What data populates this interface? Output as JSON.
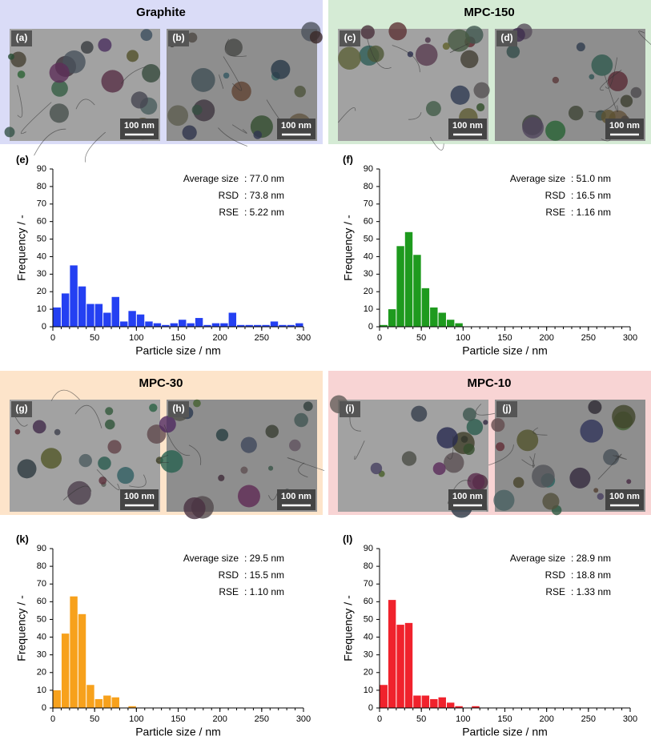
{
  "panels": [
    {
      "title": "Graphite",
      "title_color": "#2f4fe8",
      "background": "#dadcf7",
      "images": [
        {
          "label": "(a)",
          "scale_bar": "100 nm"
        },
        {
          "label": "(b)",
          "scale_bar": "100 nm"
        }
      ]
    },
    {
      "title": "MPC-150",
      "title_color": "#1a911a",
      "background": "#d5ebd5",
      "images": [
        {
          "label": "(c)",
          "scale_bar": "100 nm"
        },
        {
          "label": "(d)",
          "scale_bar": "100 nm"
        }
      ]
    },
    {
      "title": "MPC-30",
      "title_color": "#f5a01a",
      "background": "#fde4ca",
      "images": [
        {
          "label": "(g)",
          "scale_bar": "100 nm"
        },
        {
          "label": "(h)",
          "scale_bar": "100 nm"
        }
      ]
    },
    {
      "title": "MPC-10",
      "title_color": "#ee2a2a",
      "background": "#f8d4d4",
      "images": [
        {
          "label": "(i)",
          "scale_bar": "100 nm"
        },
        {
          "label": "(j)",
          "scale_bar": "100 nm"
        }
      ]
    }
  ],
  "chart_data": [
    {
      "type": "histogram",
      "panel_label": "(e)",
      "color": "#2440f2",
      "x_label": "Particle size / nm",
      "y_label": "Frequency / -",
      "bins": [
        0,
        10,
        20,
        30,
        40,
        50,
        60,
        70,
        80,
        90,
        100,
        110,
        120,
        130,
        140,
        150,
        160,
        170,
        180,
        190,
        200,
        210,
        220,
        230,
        240,
        250,
        260,
        270,
        280,
        290,
        300
      ],
      "values": [
        11,
        19,
        35,
        23,
        13,
        13,
        8,
        17,
        3,
        9,
        7,
        3,
        2,
        1,
        2,
        4,
        2,
        5,
        1,
        2,
        2,
        8,
        1,
        1,
        1,
        1,
        3,
        1,
        1,
        2
      ],
      "xlim": [
        0,
        300
      ],
      "xticks": [
        0,
        50,
        100,
        150,
        200,
        250,
        300
      ],
      "ylim": [
        0,
        90
      ],
      "yticks": [
        0,
        10,
        20,
        30,
        40,
        50,
        60,
        70,
        80,
        90
      ],
      "annotations": [
        {
          "label": "Average size",
          "value": ": 77.0 nm"
        },
        {
          "label": "RSD",
          "value": ": 73.8 nm"
        },
        {
          "label": "RSE",
          "value": ": 5.22 nm"
        }
      ]
    },
    {
      "type": "histogram",
      "panel_label": "(f)",
      "color": "#1e9a1e",
      "x_label": "Particle size / nm",
      "y_label": "Frequency / -",
      "bins": [
        0,
        10,
        20,
        30,
        40,
        50,
        60,
        70,
        80,
        90,
        100,
        110,
        120,
        130,
        140,
        150,
        160,
        170,
        180,
        190,
        200,
        210,
        220,
        230,
        240,
        250,
        260,
        270,
        280,
        290,
        300
      ],
      "values": [
        1,
        10,
        46,
        54,
        41,
        22,
        11,
        8,
        4,
        2,
        0,
        0,
        0,
        0,
        0,
        0,
        0,
        0,
        0,
        0,
        0,
        0,
        0,
        0,
        0,
        0,
        0,
        0,
        0,
        0
      ],
      "xlim": [
        0,
        300
      ],
      "xticks": [
        0,
        50,
        100,
        150,
        200,
        250,
        300
      ],
      "ylim": [
        0,
        90
      ],
      "yticks": [
        0,
        10,
        20,
        30,
        40,
        50,
        60,
        70,
        80,
        90
      ],
      "annotations": [
        {
          "label": "Average size",
          "value": ": 51.0 nm"
        },
        {
          "label": "RSD",
          "value": ": 16.5 nm"
        },
        {
          "label": "RSE",
          "value": ": 1.16 nm"
        }
      ]
    },
    {
      "type": "histogram",
      "panel_label": "(k)",
      "color": "#f7a11c",
      "x_label": "Particle size / nm",
      "y_label": "Frequency / -",
      "bins": [
        0,
        10,
        20,
        30,
        40,
        50,
        60,
        70,
        80,
        90,
        100,
        110,
        120,
        130,
        140,
        150,
        160,
        170,
        180,
        190,
        200,
        210,
        220,
        230,
        240,
        250,
        260,
        270,
        280,
        290,
        300
      ],
      "values": [
        10,
        42,
        63,
        53,
        13,
        5,
        7,
        6,
        0,
        1,
        0,
        0,
        0,
        0,
        0,
        0,
        0,
        0,
        0,
        0,
        0,
        0,
        0,
        0,
        0,
        0,
        0,
        0,
        0,
        0
      ],
      "xlim": [
        0,
        300
      ],
      "xticks": [
        0,
        50,
        100,
        150,
        200,
        250,
        300
      ],
      "ylim": [
        0,
        90
      ],
      "yticks": [
        0,
        10,
        20,
        30,
        40,
        50,
        60,
        70,
        80,
        90
      ],
      "annotations": [
        {
          "label": "Average size",
          "value": ": 29.5 nm"
        },
        {
          "label": "RSD",
          "value": ": 15.5 nm"
        },
        {
          "label": "RSE",
          "value": ": 1.10 nm"
        }
      ]
    },
    {
      "type": "histogram",
      "panel_label": "(l)",
      "color": "#f0222c",
      "x_label": "Particle size / nm",
      "y_label": "Frequency / -",
      "bins": [
        0,
        10,
        20,
        30,
        40,
        50,
        60,
        70,
        80,
        90,
        100,
        110,
        120,
        130,
        140,
        150,
        160,
        170,
        180,
        190,
        200,
        210,
        220,
        230,
        240,
        250,
        260,
        270,
        280,
        290,
        300
      ],
      "values": [
        13,
        61,
        47,
        48,
        7,
        7,
        5,
        6,
        3,
        1,
        0,
        1,
        0,
        0,
        0,
        0,
        0,
        0,
        0,
        0,
        0,
        0,
        0,
        0,
        0,
        0,
        0,
        0,
        0,
        0
      ],
      "xlim": [
        0,
        300
      ],
      "xticks": [
        0,
        50,
        100,
        150,
        200,
        250,
        300
      ],
      "ylim": [
        0,
        90
      ],
      "yticks": [
        0,
        10,
        20,
        30,
        40,
        50,
        60,
        70,
        80,
        90
      ],
      "annotations": [
        {
          "label": "Average size",
          "value": ": 28.9 nm"
        },
        {
          "label": "RSD",
          "value": ": 18.8 nm"
        },
        {
          "label": "RSE",
          "value": ": 1.33 nm"
        }
      ]
    }
  ]
}
